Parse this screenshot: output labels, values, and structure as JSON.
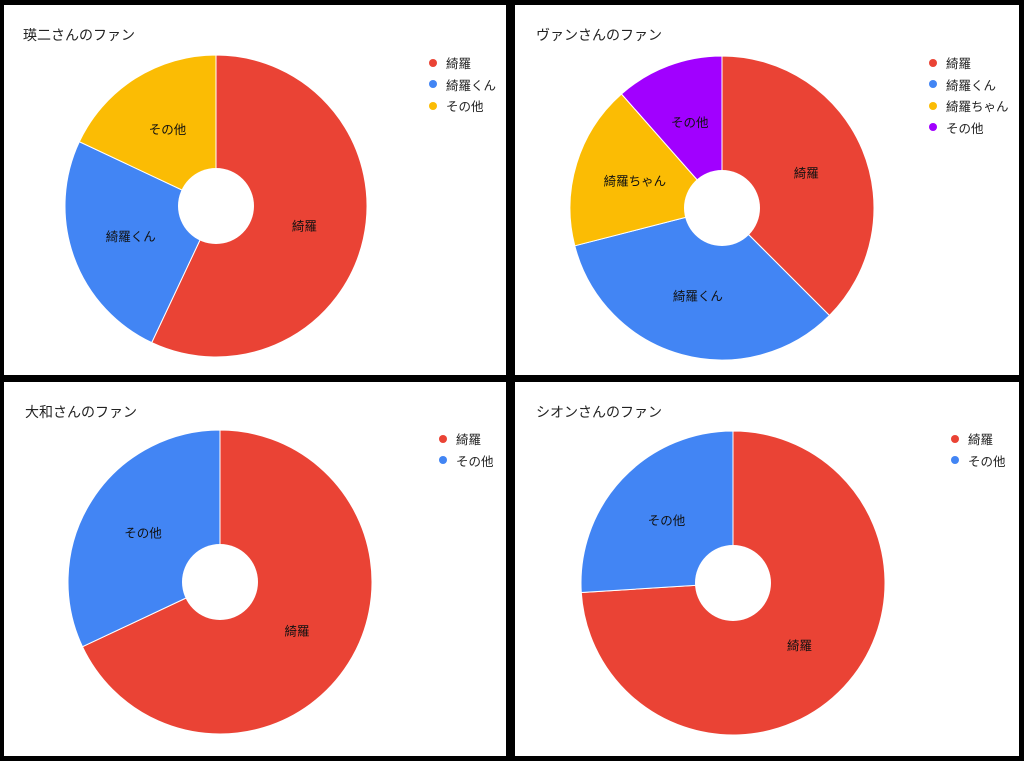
{
  "chart_data": [
    {
      "type": "pie",
      "title": "瑛二さんのファン",
      "categories": [
        "綺羅",
        "綺羅くん",
        "その他"
      ],
      "values": [
        57,
        25,
        18
      ],
      "colors": [
        "#ea4335",
        "#4285f4",
        "#fbbc04"
      ],
      "slice_labels": [
        "綺羅",
        "綺羅くん",
        "その他"
      ],
      "legend": "right"
    },
    {
      "type": "pie",
      "title": "ヴァンさんのファン",
      "categories": [
        "綺羅",
        "綺羅くん",
        "綺羅ちゃん",
        "その他"
      ],
      "values": [
        37.5,
        33.5,
        17.5,
        11.5
      ],
      "colors": [
        "#ea4335",
        "#4285f4",
        "#fbbc04",
        "#a100ff"
      ],
      "slice_labels": [
        "綺羅",
        "綺羅くん",
        "綺羅ちゃん",
        "その他"
      ],
      "legend": "right"
    },
    {
      "type": "pie",
      "title": "大和さんのファン",
      "categories": [
        "綺羅",
        "その他"
      ],
      "values": [
        68,
        32
      ],
      "colors": [
        "#ea4335",
        "#4285f4"
      ],
      "slice_labels": [
        "綺羅",
        "その他"
      ],
      "legend": "right"
    },
    {
      "type": "pie",
      "title": "シオンさんのファン",
      "categories": [
        "綺羅",
        "その他"
      ],
      "values": [
        74,
        26
      ],
      "colors": [
        "#ea4335",
        "#4285f4"
      ],
      "slice_labels": [
        "綺羅",
        "その他"
      ],
      "legend": "right"
    }
  ]
}
